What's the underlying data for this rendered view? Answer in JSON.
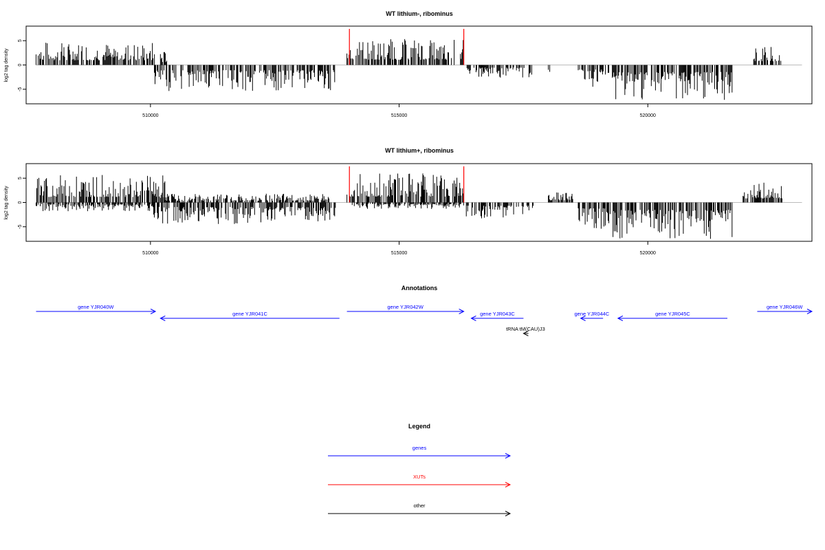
{
  "colors": {
    "gene": "#0000ff",
    "xut": "#ff0000",
    "other": "#000000",
    "bar": "#000000",
    "marker": "#ff0000",
    "baseline": "#bbbbbb"
  },
  "chart_data": [
    {
      "type": "bar",
      "title": "WT lithium-, ribominus",
      "ylabel": "log2 tag density",
      "xlim": [
        507500,
        523300
      ],
      "ylim": [
        -8,
        8
      ],
      "yticks": [
        -5,
        0,
        5
      ],
      "xticks": [
        510000,
        515000,
        520000
      ],
      "marker_positions": [
        514000,
        516300
      ],
      "segments": [
        {
          "start": 507700,
          "end": 510100,
          "strand": "+",
          "amp": 3.2
        },
        {
          "start": 510200,
          "end": 510350,
          "strand": "+",
          "amp": 2.0
        },
        {
          "start": 510050,
          "end": 513750,
          "strand": "-",
          "amp": 3.6
        },
        {
          "start": 513950,
          "end": 516300,
          "strand": "+",
          "amp": 3.6
        },
        {
          "start": 516350,
          "end": 517700,
          "strand": "-",
          "amp": 1.8
        },
        {
          "start": 518000,
          "end": 518050,
          "strand": "-",
          "amp": 1.2
        },
        {
          "start": 518600,
          "end": 519300,
          "strand": "-",
          "amp": 3.2
        },
        {
          "start": 519300,
          "end": 521700,
          "strand": "-",
          "amp": 4.8
        },
        {
          "start": 522100,
          "end": 522700,
          "strand": "+",
          "amp": 2.5
        }
      ]
    },
    {
      "type": "bar",
      "title": "WT lithium+, ribominus",
      "ylabel": "log2 tag density",
      "xlim": [
        507500,
        523300
      ],
      "ylim": [
        -8,
        8
      ],
      "yticks": [
        -5,
        0,
        5
      ],
      "xticks": [
        510000,
        515000,
        520000
      ],
      "marker_positions": [
        514000,
        516300
      ],
      "segments": [
        {
          "start": 507700,
          "end": 510300,
          "strand": "+",
          "amp": 3.8
        },
        {
          "start": 507700,
          "end": 510100,
          "strand": "-",
          "amp": 1.2
        },
        {
          "start": 510050,
          "end": 513750,
          "strand": "-",
          "amp": 3.0
        },
        {
          "start": 510200,
          "end": 513600,
          "strand": "+",
          "amp": 1.2
        },
        {
          "start": 513950,
          "end": 516300,
          "strand": "+",
          "amp": 4.0
        },
        {
          "start": 514000,
          "end": 516300,
          "strand": "-",
          "amp": 0.9
        },
        {
          "start": 516350,
          "end": 517700,
          "strand": "-",
          "amp": 2.2
        },
        {
          "start": 518000,
          "end": 518500,
          "strand": "+",
          "amp": 1.5
        },
        {
          "start": 518600,
          "end": 519300,
          "strand": "-",
          "amp": 4.0
        },
        {
          "start": 519300,
          "end": 521700,
          "strand": "-",
          "amp": 5.0
        },
        {
          "start": 521900,
          "end": 522700,
          "strand": "+",
          "amp": 2.8
        }
      ]
    }
  ],
  "annotations": {
    "title": "Annotations",
    "items": [
      {
        "label": "gene YJR040W",
        "start": 507700,
        "end": 510100,
        "dir": "right",
        "row": 0,
        "kind": "gene"
      },
      {
        "label": "gene YJR041C",
        "start": 510200,
        "end": 513800,
        "dir": "left",
        "row": 1,
        "kind": "gene"
      },
      {
        "label": "gene YJR042W",
        "start": 513950,
        "end": 516300,
        "dir": "right",
        "row": 0,
        "kind": "gene"
      },
      {
        "label": "gene YJR043C",
        "start": 516450,
        "end": 517500,
        "dir": "left",
        "row": 1,
        "kind": "gene"
      },
      {
        "label": "gene YJR044C",
        "start": 518650,
        "end": 519100,
        "dir": "left",
        "row": 1,
        "kind": "gene"
      },
      {
        "label": "gene YJR045C",
        "start": 519400,
        "end": 521600,
        "dir": "left",
        "row": 1,
        "kind": "gene"
      },
      {
        "label": "gene YJR046W",
        "start": 522200,
        "end": 523300,
        "dir": "right",
        "row": 0,
        "kind": "gene"
      },
      {
        "label": "tRNA tM(CAU)J3",
        "start": 517500,
        "end": 517600,
        "dir": "left",
        "row": 3,
        "kind": "other"
      }
    ]
  },
  "legend": {
    "title": "Legend",
    "items": [
      {
        "label": "genes",
        "kind": "gene"
      },
      {
        "label": "XUTs",
        "kind": "xut"
      },
      {
        "label": "other",
        "kind": "other"
      }
    ]
  }
}
